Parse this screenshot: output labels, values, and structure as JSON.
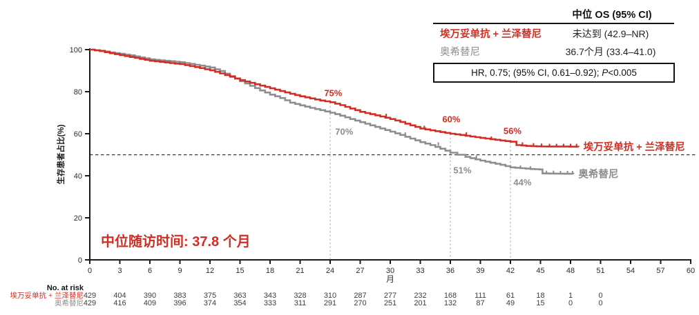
{
  "colors": {
    "red": "#d22d22",
    "gray": "#8d8d8d",
    "axis": "#1a1a1a",
    "dropline": "#a9a9a9",
    "reference": "#333333"
  },
  "summary_table": {
    "header": "中位 OS (95% CI)",
    "rows": [
      {
        "label": "埃万妥单抗 + 兰泽替尼",
        "value": "未达到 (42.9–NR)",
        "color_key": "red"
      },
      {
        "label": "奥希替尼",
        "value": "36.7个月 (33.4–41.0)",
        "color_key": "gray"
      }
    ],
    "hr": {
      "prefix": "HR, 0.75; (95% CI, 0.61–0.92); ",
      "italic": "P",
      "suffix": "<0.005"
    }
  },
  "followup_note": "中位随访时间: 37.8 个月",
  "chart_data": {
    "type": "line",
    "subtype": "kaplan-meier-step",
    "title": "",
    "xlabel": "月",
    "ylabel": "生存患者占比(%)",
    "xlim": [
      0,
      60
    ],
    "ylim": [
      0,
      100
    ],
    "x_ticks": [
      0,
      3,
      6,
      9,
      12,
      15,
      18,
      21,
      24,
      27,
      30,
      33,
      36,
      39,
      42,
      45,
      48,
      51,
      54,
      57,
      60
    ],
    "y_ticks": [
      0,
      20,
      40,
      60,
      80,
      100
    ],
    "grid": "off",
    "h_reference_pct": 50,
    "droplines": [
      {
        "month": 24,
        "top_pct": 75
      },
      {
        "month": 36,
        "top_pct": 60
      },
      {
        "month": 42,
        "top_pct": 56
      }
    ],
    "series": [
      {
        "name": "埃万妥单抗 + 兰泽替尼",
        "color_key": "red",
        "milestones": {
          "24": 75,
          "36": 60,
          "42": 56
        },
        "points": [
          [
            0,
            100
          ],
          [
            1,
            99.3
          ],
          [
            2,
            98.3
          ],
          [
            3,
            97.4
          ],
          [
            4,
            96.5
          ],
          [
            5,
            95.6
          ],
          [
            6,
            94.7
          ],
          [
            7,
            94.2
          ],
          [
            8,
            93.6
          ],
          [
            9,
            93.1
          ],
          [
            10,
            92.2
          ],
          [
            11,
            91.2
          ],
          [
            12,
            90.2
          ],
          [
            13,
            88.7
          ],
          [
            14,
            87.1
          ],
          [
            15,
            85.5
          ],
          [
            16,
            84.2
          ],
          [
            17,
            82.9
          ],
          [
            18,
            81.6
          ],
          [
            19,
            80.3
          ],
          [
            20,
            79.0
          ],
          [
            21,
            77.8
          ],
          [
            22,
            76.8
          ],
          [
            23,
            75.8
          ],
          [
            24,
            75.0
          ],
          [
            25,
            73.6
          ],
          [
            26,
            72.0
          ],
          [
            27,
            70.4
          ],
          [
            28,
            69.3
          ],
          [
            29,
            68.2
          ],
          [
            30,
            67.0
          ],
          [
            31,
            65.6
          ],
          [
            32,
            64.0
          ],
          [
            33,
            62.5
          ],
          [
            34,
            61.6
          ],
          [
            35,
            60.8
          ],
          [
            36,
            60.0
          ],
          [
            37,
            59.4
          ],
          [
            38,
            58.7
          ],
          [
            39,
            58.0
          ],
          [
            40,
            57.4
          ],
          [
            41,
            56.8
          ],
          [
            42,
            56.2
          ],
          [
            42.6,
            54.6
          ],
          [
            43.6,
            54.2
          ],
          [
            44.6,
            54.0
          ],
          [
            45.6,
            53.9
          ],
          [
            47,
            53.9
          ],
          [
            48.8,
            53.8
          ]
        ],
        "censor_months": [
          29.6,
          33.4,
          37.6,
          40.1,
          43.2,
          44.3,
          45.1,
          45.9,
          46.6,
          47.3,
          48.0,
          48.6
        ]
      },
      {
        "name": "奥希替尼",
        "color_key": "gray",
        "milestones": {
          "24": 70,
          "36": 51,
          "42": 44
        },
        "points": [
          [
            0,
            100
          ],
          [
            1,
            99.5
          ],
          [
            2,
            98.7
          ],
          [
            3,
            98.0
          ],
          [
            4,
            97.3
          ],
          [
            5,
            96.3
          ],
          [
            6,
            95.4
          ],
          [
            7,
            94.9
          ],
          [
            8,
            94.5
          ],
          [
            9,
            94.0
          ],
          [
            10,
            93.2
          ],
          [
            11,
            92.4
          ],
          [
            12,
            91.5
          ],
          [
            13,
            89.8
          ],
          [
            14,
            87.4
          ],
          [
            15,
            85.0
          ],
          [
            16,
            82.8
          ],
          [
            17,
            80.6
          ],
          [
            18,
            78.6
          ],
          [
            19,
            77.0
          ],
          [
            20,
            74.8
          ],
          [
            21,
            73.5
          ],
          [
            22,
            72.3
          ],
          [
            23,
            71.2
          ],
          [
            24,
            70.0
          ],
          [
            25,
            68.6
          ],
          [
            26,
            67.0
          ],
          [
            27,
            65.5
          ],
          [
            28,
            64.0
          ],
          [
            29,
            62.5
          ],
          [
            30,
            61.0
          ],
          [
            31,
            59.4
          ],
          [
            32,
            57.7
          ],
          [
            33,
            56.0
          ],
          [
            34,
            54.6
          ],
          [
            35,
            52.9
          ],
          [
            36,
            51.0
          ],
          [
            36.7,
            50.0
          ],
          [
            37.5,
            49.0
          ],
          [
            38,
            48.4
          ],
          [
            39,
            47.2
          ],
          [
            40,
            46.2
          ],
          [
            41,
            45.2
          ],
          [
            42,
            44.0
          ],
          [
            43,
            43.6
          ],
          [
            44,
            43.2
          ],
          [
            44.9,
            43.0
          ],
          [
            45.2,
            41.1
          ],
          [
            46.5,
            41.0
          ],
          [
            48.3,
            40.9
          ]
        ],
        "censor_months": [
          31.5,
          34.8,
          38.6,
          43.0,
          44.0,
          45.6,
          46.3,
          47.0,
          47.7,
          48.2
        ]
      }
    ],
    "annotations": [
      {
        "text": "75%",
        "month": 24.3,
        "pct": 79.3,
        "series": 0
      },
      {
        "text": "70%",
        "month": 25.4,
        "pct": 61.0,
        "series": 1
      },
      {
        "text": "60%",
        "month": 36.1,
        "pct": 66.9,
        "series": 0
      },
      {
        "text": "51%",
        "month": 37.2,
        "pct": 42.6,
        "series": 1
      },
      {
        "text": "56%",
        "month": 42.2,
        "pct": 61.3,
        "series": 0
      },
      {
        "text": "44%",
        "month": 43.2,
        "pct": 36.9,
        "series": 1
      }
    ]
  },
  "no_at_risk": {
    "header": "No. at risk",
    "months": [
      0,
      3,
      6,
      9,
      12,
      15,
      18,
      21,
      24,
      27,
      30,
      33,
      36,
      39,
      42,
      45,
      48,
      51
    ],
    "rows": [
      {
        "label": "埃万妥单抗 + 兰泽替尼",
        "color_key": "red",
        "values": [
          429,
          404,
          390,
          383,
          375,
          363,
          343,
          328,
          310,
          287,
          277,
          232,
          168,
          111,
          61,
          18,
          1,
          0
        ]
      },
      {
        "label": "奥希替尼",
        "color_key": "gray",
        "values": [
          429,
          416,
          409,
          396,
          374,
          354,
          333,
          311,
          291,
          270,
          251,
          201,
          132,
          87,
          49,
          15,
          0,
          0
        ]
      }
    ]
  }
}
